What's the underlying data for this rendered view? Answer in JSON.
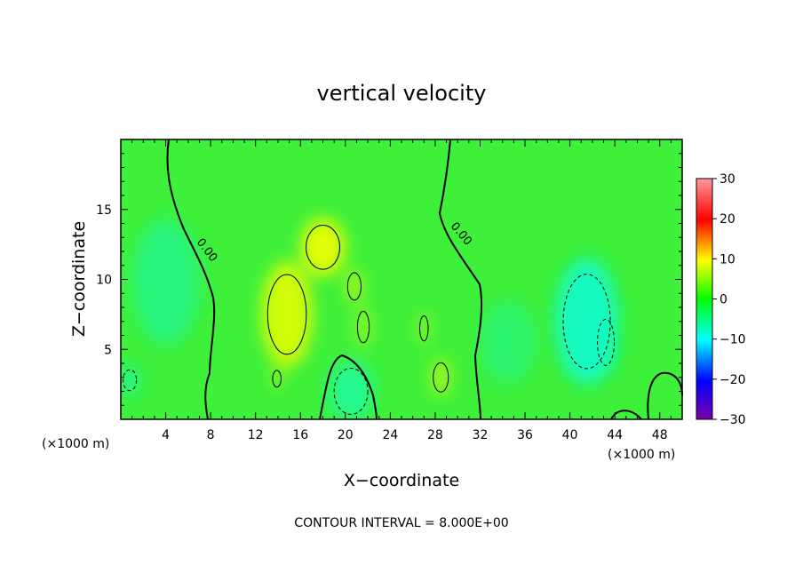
{
  "chart_data": {
    "type": "heatmap",
    "title": "vertical velocity",
    "xlabel": "X−coordinate",
    "ylabel": "Z−coordinate",
    "x_unit_left": "(×1000 m)",
    "x_unit_right": "(×1000 m)",
    "footer": "CONTOUR INTERVAL = 8.000E+00",
    "xlim": [
      0,
      50
    ],
    "ylim": [
      0,
      20
    ],
    "x_ticks": [
      4,
      8,
      12,
      16,
      20,
      24,
      28,
      32,
      36,
      40,
      44,
      48
    ],
    "y_ticks": [
      5,
      10,
      15
    ],
    "colorbar": {
      "range": [
        -30,
        30
      ],
      "ticks": [
        30,
        20,
        10,
        0,
        -10,
        -20,
        -30
      ],
      "tick_labels": [
        "30",
        "20",
        "10",
        "0",
        "−10",
        "−20",
        "−30"
      ]
    },
    "contour_label": "0.00",
    "regions": [
      {
        "kind": "positive",
        "x": 18.0,
        "y": 12.3,
        "rx": 2.0,
        "ry": 2.1,
        "value": 10
      },
      {
        "kind": "positive",
        "x": 14.8,
        "y": 7.5,
        "rx": 2.3,
        "ry": 3.8,
        "value": 9
      },
      {
        "kind": "positive",
        "x": 20.8,
        "y": 9.5,
        "rx": 0.8,
        "ry": 1.3,
        "value": 6
      },
      {
        "kind": "positive",
        "x": 21.6,
        "y": 6.6,
        "rx": 0.7,
        "ry": 1.5,
        "value": 5
      },
      {
        "kind": "positive",
        "x": 28.5,
        "y": 3.0,
        "rx": 0.9,
        "ry": 1.4,
        "value": 6
      },
      {
        "kind": "positive",
        "x": 27.0,
        "y": 6.5,
        "rx": 0.5,
        "ry": 1.2,
        "value": 5
      },
      {
        "kind": "positive",
        "x": 13.9,
        "y": 2.9,
        "rx": 0.5,
        "ry": 0.8,
        "value": 5
      },
      {
        "kind": "negative",
        "x": 41.5,
        "y": 7.0,
        "rx": 2.8,
        "ry": 4.5,
        "value": -8
      },
      {
        "kind": "negative",
        "x": 43.2,
        "y": 5.5,
        "rx": 1.0,
        "ry": 2.2,
        "value": -7
      },
      {
        "kind": "negative",
        "x": 4.0,
        "y": 9.8,
        "rx": 3.0,
        "ry": 4.5,
        "value": -4
      },
      {
        "kind": "negative",
        "x": 20.5,
        "y": 2.0,
        "rx": 2.0,
        "ry": 2.2,
        "value": -5
      },
      {
        "kind": "negative",
        "x": 0.8,
        "y": 2.8,
        "rx": 0.8,
        "ry": 1.0,
        "value": -6
      },
      {
        "kind": "negative",
        "x": 34.5,
        "y": 5.5,
        "rx": 2.5,
        "ry": 3.0,
        "value": -3
      }
    ]
  }
}
